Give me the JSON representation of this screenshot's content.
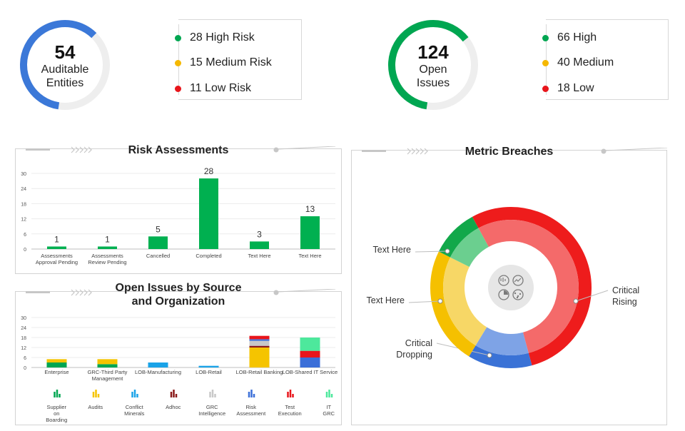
{
  "kpi_entities": {
    "number": "54",
    "label_line1": "Auditable",
    "label_line2": "Entities",
    "fraction": 0.6,
    "color": "#3b78d8",
    "items": [
      {
        "text": "28 High Risk",
        "color": "#00a651"
      },
      {
        "text": "15 Medium Risk",
        "color": "#f5b800"
      },
      {
        "text": "11 Low Risk",
        "color": "#e8151b"
      }
    ]
  },
  "kpi_issues": {
    "number": "124",
    "label_line1": "Open",
    "label_line2": "Issues",
    "fraction": 0.62,
    "color": "#00a651",
    "items": [
      {
        "text": "66 High",
        "color": "#00a651"
      },
      {
        "text": "40 Medium",
        "color": "#f5b800"
      },
      {
        "text": "18 Low",
        "color": "#e8151b"
      }
    ]
  },
  "panels": {
    "risk_title": "Risk Assessments",
    "issues_title_line1": "Open Issues by Source",
    "issues_title_line2": "and Organization",
    "breaches_title": "Metric Breaches"
  },
  "chart_data": [
    {
      "type": "bar",
      "title": "Risk Assessments",
      "categories": [
        [
          "Assessments",
          "Approval Pending"
        ],
        [
          "Assessments",
          "Review Pending"
        ],
        [
          "Cancelled"
        ],
        [
          "Completed"
        ],
        [
          "Text Here"
        ],
        [
          "Text Here"
        ]
      ],
      "values": [
        1,
        1,
        5,
        28,
        3,
        13
      ],
      "ylim": [
        0,
        30
      ],
      "yticks": [
        0,
        6,
        12,
        18,
        24,
        30
      ],
      "color": "#00b050",
      "grid": true
    },
    {
      "type": "bar",
      "stacked": true,
      "title": "Open Issues by Source and Organization",
      "categories": [
        [
          "Enterprise"
        ],
        [
          "GRC-Third Party",
          "Management"
        ],
        [
          "LOB-Manufacturing"
        ],
        [
          "LOB-Retail"
        ],
        [
          "LOB-Retail Banking"
        ],
        [
          "LOB-Shared IT Service"
        ]
      ],
      "ylim": [
        0,
        30
      ],
      "yticks": [
        0,
        6,
        12,
        18,
        24,
        30
      ],
      "grid": true,
      "series": [
        {
          "name": [
            "Supplier",
            "on",
            "Boarding"
          ],
          "color": "#00a651",
          "values": [
            3,
            2,
            0,
            0,
            0,
            0
          ]
        },
        {
          "name": [
            "Audits"
          ],
          "color": "#f5c400",
          "values": [
            2,
            3,
            0,
            0,
            12,
            0
          ]
        },
        {
          "name": [
            "Conflict",
            "Minerals"
          ],
          "color": "#1aa3e8",
          "values": [
            0,
            0,
            3,
            1,
            0,
            0
          ]
        },
        {
          "name": [
            "Adhoc"
          ],
          "color": "#8b1a1a",
          "values": [
            0,
            0,
            0,
            0,
            1,
            0
          ]
        },
        {
          "name": [
            "GRC",
            "Intelligence"
          ],
          "color": "#c8c8c8",
          "values": [
            0,
            0,
            0,
            0,
            3,
            0
          ]
        },
        {
          "name": [
            "Risk",
            "Assessment"
          ],
          "color": "#3b6fd8",
          "values": [
            0,
            0,
            0,
            0,
            1,
            6
          ]
        },
        {
          "name": [
            "Test",
            "Execution"
          ],
          "color": "#e8151b",
          "values": [
            0,
            0,
            0,
            0,
            2,
            4
          ]
        },
        {
          "name": [
            "IT",
            "GRC"
          ],
          "color": "#4de89c",
          "values": [
            0,
            0,
            0,
            0,
            0,
            8
          ]
        }
      ]
    },
    {
      "type": "pie",
      "subtype": "double-donut",
      "title": "Metric Breaches",
      "slices": [
        {
          "label": [
            "Critical",
            "Rising"
          ],
          "value": 50,
          "color": "#ee1c1c",
          "inner_color": "#f46a6a"
        },
        {
          "label": [
            "Critical",
            "Dropping"
          ],
          "value": 12,
          "color": "#3a72d6",
          "inner_color": "#7ea3e6"
        },
        {
          "label": [
            "Text Here"
          ],
          "value": 22,
          "color": "#f5c000",
          "inner_color": "#f7d766"
        },
        {
          "label": [
            "Text Here"
          ],
          "value": 9,
          "color": "#12a84a",
          "inner_color": "#6bcf8f"
        }
      ],
      "center_icon": "analytics-icon"
    }
  ]
}
